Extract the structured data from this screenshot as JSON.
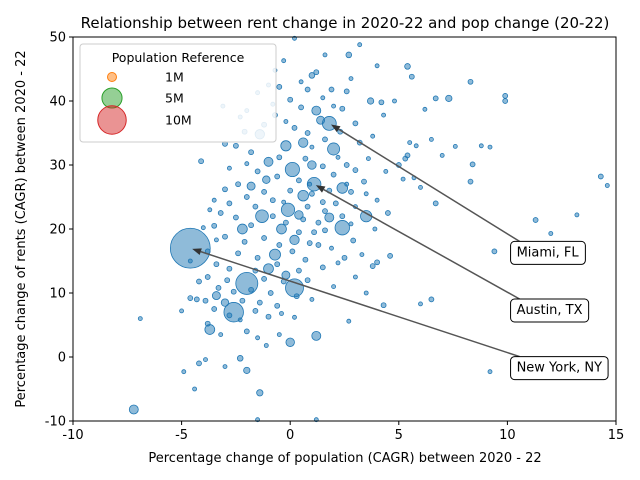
{
  "chart_data": {
    "type": "scatter",
    "title": "Relationship between rent change in 2020-22 and pop change (20-22)",
    "xlabel": "Percentage change of population (CAGR) between 2020 - 22",
    "ylabel": "Percentage change of rents (CAGR) between 2020 - 22",
    "xlim": [
      -10,
      15
    ],
    "ylim": [
      -10,
      50
    ],
    "xticks": [
      -10,
      -5,
      0,
      5,
      10,
      15
    ],
    "yticks": [
      -10,
      0,
      10,
      20,
      30,
      40,
      50
    ],
    "grid": false,
    "point_color": "#1f77b4",
    "legend": {
      "title": "Population Reference",
      "placement": "upper-left",
      "entries": [
        {
          "label": "1M",
          "population": 1000000,
          "color": "#ff7f0e"
        },
        {
          "label": "5M",
          "population": 5000000,
          "color": "#2ca02c"
        },
        {
          "label": "10M",
          "population": 10000000,
          "color": "#d62728"
        }
      ]
    },
    "annotations": [
      {
        "text": "Miami, FL",
        "text_x": 10.1,
        "text_y": 16.5,
        "point_x": 1.8,
        "point_y": 36.5
      },
      {
        "text": "Austin, TX",
        "text_x": 10.1,
        "text_y": 7.5,
        "point_x": 1.1,
        "point_y": 27.0
      },
      {
        "text": "New York, NY",
        "text_x": 10.1,
        "text_y": -1.5,
        "point_x": -4.6,
        "point_y": 17.0
      }
    ],
    "points": [
      {
        "x": -4.6,
        "y": 17.0,
        "pop": 19.6
      },
      {
        "x": -2.0,
        "y": 11.5,
        "pop": 6.0
      },
      {
        "x": -2.6,
        "y": 7.0,
        "pop": 4.7
      },
      {
        "x": 0.2,
        "y": 10.8,
        "pop": 4.0
      },
      {
        "x": 1.8,
        "y": 36.5,
        "pop": 2.4
      },
      {
        "x": 1.1,
        "y": 27.0,
        "pop": 2.3
      },
      {
        "x": 0.1,
        "y": 29.3,
        "pop": 2.5
      },
      {
        "x": 2.4,
        "y": 20.2,
        "pop": 2.6
      },
      {
        "x": -0.1,
        "y": 23.0,
        "pop": 2.2
      },
      {
        "x": -1.3,
        "y": 22.0,
        "pop": 2.0
      },
      {
        "x": 2.0,
        "y": 32.5,
        "pop": 1.8
      },
      {
        "x": 3.5,
        "y": 22.0,
        "pop": 1.6
      },
      {
        "x": -0.7,
        "y": 16.0,
        "pop": 1.5
      },
      {
        "x": 2.4,
        "y": 26.4,
        "pop": 1.4
      },
      {
        "x": -7.2,
        "y": -8.2,
        "pop": 1.0
      },
      {
        "x": -3.7,
        "y": 4.3,
        "pop": 1.2
      },
      {
        "x": 1.2,
        "y": 3.3,
        "pop": 1.0
      },
      {
        "x": 0.0,
        "y": 2.3,
        "pop": 0.9
      },
      {
        "x": -1.4,
        "y": 34.8,
        "pop": 1.1
      },
      {
        "x": -0.2,
        "y": 33.0,
        "pop": 1.3
      },
      {
        "x": -1.0,
        "y": 30.5,
        "pop": 1.0
      },
      {
        "x": 0.6,
        "y": 25.2,
        "pop": 1.4
      },
      {
        "x": -0.4,
        "y": 20.0,
        "pop": 1.2
      },
      {
        "x": -2.2,
        "y": 20.0,
        "pop": 1.2
      },
      {
        "x": 1.8,
        "y": 21.8,
        "pop": 1.0
      },
      {
        "x": 1.0,
        "y": 30.0,
        "pop": 0.9
      },
      {
        "x": 0.2,
        "y": 18.3,
        "pop": 1.1
      },
      {
        "x": -1.0,
        "y": 13.8,
        "pop": 1.2
      },
      {
        "x": 1.2,
        "y": 38.5,
        "pop": 1.0
      },
      {
        "x": 0.6,
        "y": 33.5,
        "pop": 1.1
      },
      {
        "x": 1.4,
        "y": 37.0,
        "pop": 0.8
      },
      {
        "x": -1.8,
        "y": 26.7,
        "pop": 0.8
      },
      {
        "x": -3.4,
        "y": 9.6,
        "pop": 0.8
      },
      {
        "x": -0.2,
        "y": 12.8,
        "pop": 0.8
      },
      {
        "x": 0.4,
        "y": 22.2,
        "pop": 0.9
      },
      {
        "x": -3.0,
        "y": 8.5,
        "pop": 0.7
      },
      {
        "x": -1.1,
        "y": 27.7,
        "pop": 0.7
      },
      {
        "x": 3.7,
        "y": 40.0,
        "pop": 0.5
      },
      {
        "x": 7.3,
        "y": 40.4,
        "pop": 0.5
      },
      {
        "x": 1.0,
        "y": 44.0,
        "pop": 0.4
      },
      {
        "x": 2.7,
        "y": 47.2,
        "pop": 0.4
      },
      {
        "x": 5.4,
        "y": 45.4,
        "pop": 0.4
      },
      {
        "x": 5.6,
        "y": 43.8,
        "pop": 0.3
      },
      {
        "x": -1.4,
        "y": -5.6,
        "pop": 0.5
      },
      {
        "x": -2.0,
        "y": -2.1,
        "pop": 0.5
      },
      {
        "x": -2.3,
        "y": -0.2,
        "pop": 0.4
      },
      {
        "x": -4.2,
        "y": -1.0,
        "pop": 0.3
      },
      {
        "x": -4.2,
        "y": 11.8,
        "pop": 0.3
      },
      {
        "x": -4.3,
        "y": 9.0,
        "pop": 0.3
      },
      {
        "x": -4.6,
        "y": 9.2,
        "pop": 0.3
      },
      {
        "x": 14.3,
        "y": 28.2,
        "pop": 0.3
      },
      {
        "x": 11.3,
        "y": 21.4,
        "pop": 0.3
      },
      {
        "x": 9.4,
        "y": 16.5,
        "pop": 0.3
      },
      {
        "x": 8.3,
        "y": 27.4,
        "pop": 0.3
      },
      {
        "x": 6.7,
        "y": 24.0,
        "pop": 0.3
      },
      {
        "x": 4.5,
        "y": 22.5,
        "pop": 0.3
      },
      {
        "x": 4.0,
        "y": 14.8,
        "pop": 0.3
      },
      {
        "x": 4.6,
        "y": 15.8,
        "pop": 0.3
      },
      {
        "x": 4.3,
        "y": 8.1,
        "pop": 0.3
      },
      {
        "x": 6.5,
        "y": 9.0,
        "pop": 0.3
      },
      {
        "x": 2.7,
        "y": 5.6,
        "pop": 0.2
      },
      {
        "x": 9.9,
        "y": 40.0,
        "pop": 0.3
      },
      {
        "x": 9.9,
        "y": 40.8,
        "pop": 0.3
      },
      {
        "x": 8.3,
        "y": 43.0,
        "pop": 0.3
      },
      {
        "x": 6.7,
        "y": 40.4,
        "pop": 0.3
      },
      {
        "x": 5.3,
        "y": 31.0,
        "pop": 0.3
      },
      {
        "x": 5.4,
        "y": 31.5,
        "pop": 0.3
      },
      {
        "x": 5.7,
        "y": 28.0,
        "pop": 0.2
      },
      {
        "x": 5.0,
        "y": 30.0,
        "pop": 0.3
      },
      {
        "x": 6.2,
        "y": 38.7,
        "pop": 0.2
      },
      {
        "x": 8.4,
        "y": 30.1,
        "pop": 0.3
      },
      {
        "x": 8.8,
        "y": 33.0,
        "pop": 0.2
      },
      {
        "x": 9.2,
        "y": 32.8,
        "pop": 0.2
      },
      {
        "x": 7.6,
        "y": 32.9,
        "pop": 0.2
      },
      {
        "x": 6.5,
        "y": 34.0,
        "pop": 0.2
      },
      {
        "x": 7.0,
        "y": 31.5,
        "pop": 0.2
      },
      {
        "x": 5.5,
        "y": 33.5,
        "pop": 0.2
      },
      {
        "x": 4.2,
        "y": 39.8,
        "pop": 0.3
      },
      {
        "x": 4.0,
        "y": 45.5,
        "pop": 0.2
      },
      {
        "x": 3.2,
        "y": 48.8,
        "pop": 0.2
      },
      {
        "x": 0.2,
        "y": 49.8,
        "pop": 0.2
      },
      {
        "x": 1.6,
        "y": 47.2,
        "pop": 0.2
      },
      {
        "x": -0.7,
        "y": 44.8,
        "pop": 0.2
      },
      {
        "x": -0.3,
        "y": 46.3,
        "pop": 0.2
      },
      {
        "x": -3.1,
        "y": 39.2,
        "pop": 0.2
      },
      {
        "x": -3.0,
        "y": 33.3,
        "pop": 0.3
      },
      {
        "x": -4.1,
        "y": 30.6,
        "pop": 0.3
      },
      {
        "x": -2.1,
        "y": 35.2,
        "pop": 0.3
      },
      {
        "x": -2.3,
        "y": 37.5,
        "pop": 0.2
      },
      {
        "x": 14.6,
        "y": 26.8,
        "pop": 0.2
      },
      {
        "x": 13.2,
        "y": 22.2,
        "pop": 0.2
      },
      {
        "x": 12.0,
        "y": 19.3,
        "pop": 0.2
      },
      {
        "x": 9.2,
        "y": -2.3,
        "pop": 0.2
      },
      {
        "x": 6.0,
        "y": 8.3,
        "pop": 0.2
      },
      {
        "x": 3.5,
        "y": 10.0,
        "pop": 0.2
      },
      {
        "x": 3.8,
        "y": 14.2,
        "pop": 0.3
      },
      {
        "x": 3.3,
        "y": 16.0,
        "pop": 0.2
      },
      {
        "x": 2.9,
        "y": 18.2,
        "pop": 0.3
      },
      {
        "x": 2.5,
        "y": 15.5,
        "pop": 0.3
      },
      {
        "x": 2.2,
        "y": 14.7,
        "pop": 0.2
      },
      {
        "x": 1.5,
        "y": 14.0,
        "pop": 0.3
      },
      {
        "x": 1.3,
        "y": 17.5,
        "pop": 0.3
      },
      {
        "x": 1.1,
        "y": 19.5,
        "pop": 0.3
      },
      {
        "x": 1.6,
        "y": 22.8,
        "pop": 0.3
      },
      {
        "x": 2.1,
        "y": 24.0,
        "pop": 0.3
      },
      {
        "x": 2.8,
        "y": 25.8,
        "pop": 0.3
      },
      {
        "x": 3.4,
        "y": 27.4,
        "pop": 0.3
      },
      {
        "x": 3.0,
        "y": 29.2,
        "pop": 0.3
      },
      {
        "x": 2.6,
        "y": 30.0,
        "pop": 0.3
      },
      {
        "x": 3.2,
        "y": 33.5,
        "pop": 0.3
      },
      {
        "x": 2.3,
        "y": 35.2,
        "pop": 0.3
      },
      {
        "x": 3.0,
        "y": 36.5,
        "pop": 0.3
      },
      {
        "x": 2.4,
        "y": 38.8,
        "pop": 0.3
      },
      {
        "x": 2.6,
        "y": 41.5,
        "pop": 0.3
      },
      {
        "x": 1.9,
        "y": 41.8,
        "pop": 0.3
      },
      {
        "x": 1.2,
        "y": 44.5,
        "pop": 0.3
      },
      {
        "x": 0.8,
        "y": 41.8,
        "pop": 0.3
      },
      {
        "x": 0.0,
        "y": 40.2,
        "pop": 0.3
      },
      {
        "x": -0.5,
        "y": 42.2,
        "pop": 0.3
      },
      {
        "x": 0.5,
        "y": 39.0,
        "pop": 0.3
      },
      {
        "x": -1.5,
        "y": 41.3,
        "pop": 0.2
      },
      {
        "x": -2.0,
        "y": 38.5,
        "pop": 0.2
      },
      {
        "x": -0.7,
        "y": 37.8,
        "pop": 0.3
      },
      {
        "x": -1.2,
        "y": 36.3,
        "pop": 0.3
      },
      {
        "x": 0.2,
        "y": 35.8,
        "pop": 0.3
      },
      {
        "x": 0.8,
        "y": 35.0,
        "pop": 0.3
      },
      {
        "x": 1.6,
        "y": 34.0,
        "pop": 0.3
      },
      {
        "x": -2.5,
        "y": 33.0,
        "pop": 0.3
      },
      {
        "x": -1.8,
        "y": 32.0,
        "pop": 0.3
      },
      {
        "x": -0.5,
        "y": 31.2,
        "pop": 0.3
      },
      {
        "x": 0.7,
        "y": 31.0,
        "pop": 0.3
      },
      {
        "x": 1.5,
        "y": 29.8,
        "pop": 0.3
      },
      {
        "x": 2.0,
        "y": 28.5,
        "pop": 0.3
      },
      {
        "x": -1.5,
        "y": 29.0,
        "pop": 0.3
      },
      {
        "x": -0.6,
        "y": 28.2,
        "pop": 0.3
      },
      {
        "x": 0.4,
        "y": 27.6,
        "pop": 0.3
      },
      {
        "x": -2.4,
        "y": 27.0,
        "pop": 0.3
      },
      {
        "x": -3.0,
        "y": 26.2,
        "pop": 0.3
      },
      {
        "x": -2.0,
        "y": 25.0,
        "pop": 0.3
      },
      {
        "x": -1.2,
        "y": 25.8,
        "pop": 0.3
      },
      {
        "x": 0.0,
        "y": 26.0,
        "pop": 0.3
      },
      {
        "x": 1.0,
        "y": 25.5,
        "pop": 0.3
      },
      {
        "x": 1.8,
        "y": 26.0,
        "pop": 0.3
      },
      {
        "x": -2.8,
        "y": 24.0,
        "pop": 0.3
      },
      {
        "x": -1.6,
        "y": 23.5,
        "pop": 0.3
      },
      {
        "x": -0.8,
        "y": 24.5,
        "pop": 0.3
      },
      {
        "x": 0.8,
        "y": 23.5,
        "pop": 0.3
      },
      {
        "x": 1.5,
        "y": 24.2,
        "pop": 0.3
      },
      {
        "x": -3.2,
        "y": 22.5,
        "pop": 0.3
      },
      {
        "x": -2.5,
        "y": 21.8,
        "pop": 0.3
      },
      {
        "x": -0.8,
        "y": 22.0,
        "pop": 0.3
      },
      {
        "x": 0.6,
        "y": 21.5,
        "pop": 0.3
      },
      {
        "x": 1.3,
        "y": 21.0,
        "pop": 0.3
      },
      {
        "x": 2.4,
        "y": 22.0,
        "pop": 0.3
      },
      {
        "x": -3.5,
        "y": 20.5,
        "pop": 0.3
      },
      {
        "x": -1.8,
        "y": 20.6,
        "pop": 0.3
      },
      {
        "x": -0.2,
        "y": 21.0,
        "pop": 0.3
      },
      {
        "x": 0.4,
        "y": 19.5,
        "pop": 0.3
      },
      {
        "x": 1.6,
        "y": 19.8,
        "pop": 0.3
      },
      {
        "x": -3.0,
        "y": 18.8,
        "pop": 0.3
      },
      {
        "x": -2.1,
        "y": 18.0,
        "pop": 0.3
      },
      {
        "x": -1.2,
        "y": 18.6,
        "pop": 0.3
      },
      {
        "x": -0.5,
        "y": 17.5,
        "pop": 0.3
      },
      {
        "x": 0.9,
        "y": 17.8,
        "pop": 0.3
      },
      {
        "x": -3.8,
        "y": 16.5,
        "pop": 0.3
      },
      {
        "x": -2.4,
        "y": 16.2,
        "pop": 0.3
      },
      {
        "x": -1.5,
        "y": 15.5,
        "pop": 0.3
      },
      {
        "x": 0.1,
        "y": 16.5,
        "pop": 0.3
      },
      {
        "x": 0.7,
        "y": 15.2,
        "pop": 0.3
      },
      {
        "x": -3.4,
        "y": 14.5,
        "pop": 0.3
      },
      {
        "x": -2.8,
        "y": 13.8,
        "pop": 0.3
      },
      {
        "x": -1.6,
        "y": 13.5,
        "pop": 0.3
      },
      {
        "x": -0.6,
        "y": 14.5,
        "pop": 0.3
      },
      {
        "x": 0.4,
        "y": 13.5,
        "pop": 0.3
      },
      {
        "x": -3.8,
        "y": 12.5,
        "pop": 0.3
      },
      {
        "x": -2.9,
        "y": 12.0,
        "pop": 0.3
      },
      {
        "x": -1.2,
        "y": 12.2,
        "pop": 0.3
      },
      {
        "x": -0.3,
        "y": 11.8,
        "pop": 0.3
      },
      {
        "x": 0.8,
        "y": 12.0,
        "pop": 0.3
      },
      {
        "x": -3.3,
        "y": 10.8,
        "pop": 0.3
      },
      {
        "x": -2.6,
        "y": 10.2,
        "pop": 0.3
      },
      {
        "x": -1.8,
        "y": 10.5,
        "pop": 0.3
      },
      {
        "x": -0.9,
        "y": 10.0,
        "pop": 0.3
      },
      {
        "x": 0.3,
        "y": 9.5,
        "pop": 0.3
      },
      {
        "x": -3.9,
        "y": 8.8,
        "pop": 0.3
      },
      {
        "x": -2.2,
        "y": 8.8,
        "pop": 0.3
      },
      {
        "x": -1.4,
        "y": 8.5,
        "pop": 0.3
      },
      {
        "x": -0.6,
        "y": 8.0,
        "pop": 0.3
      },
      {
        "x": -3.5,
        "y": 7.5,
        "pop": 0.3
      },
      {
        "x": -2.8,
        "y": 6.5,
        "pop": 0.3
      },
      {
        "x": -1.6,
        "y": 7.2,
        "pop": 0.3
      },
      {
        "x": -1.0,
        "y": 6.3,
        "pop": 0.3
      },
      {
        "x": 0.2,
        "y": 6.2,
        "pop": 0.2
      },
      {
        "x": -3.8,
        "y": 5.2,
        "pop": 0.3
      },
      {
        "x": -2.0,
        "y": 4.0,
        "pop": 0.3
      },
      {
        "x": -0.5,
        "y": 3.5,
        "pop": 0.2
      },
      {
        "x": -1.1,
        "y": 1.8,
        "pop": 0.2
      },
      {
        "x": -3.9,
        "y": -0.4,
        "pop": 0.2
      },
      {
        "x": -4.4,
        "y": -5.0,
        "pop": 0.2
      },
      {
        "x": -4.9,
        "y": -2.3,
        "pop": 0.2
      },
      {
        "x": -5.0,
        "y": 7.2,
        "pop": 0.2
      },
      {
        "x": -6.9,
        "y": 6.0,
        "pop": 0.2
      },
      {
        "x": -3.0,
        "y": -1.5,
        "pop": 0.2
      },
      {
        "x": -1.5,
        "y": -9.8,
        "pop": 0.2
      },
      {
        "x": 1.2,
        "y": -9.8,
        "pop": 0.2
      },
      {
        "x": -4.6,
        "y": 15.0,
        "pop": 0.2
      },
      {
        "x": -3.4,
        "y": 18.3,
        "pop": 0.2
      },
      {
        "x": -4.0,
        "y": 20.2,
        "pop": 0.2
      },
      {
        "x": -2.0,
        "y": 30.2,
        "pop": 0.2
      },
      {
        "x": -0.8,
        "y": 39.5,
        "pop": 0.2
      },
      {
        "x": 2.0,
        "y": 39.2,
        "pop": 0.2
      },
      {
        "x": 3.8,
        "y": 34.5,
        "pop": 0.2
      },
      {
        "x": 4.3,
        "y": 37.8,
        "pop": 0.2
      },
      {
        "x": 3.6,
        "y": 31.0,
        "pop": 0.2
      },
      {
        "x": 4.4,
        "y": 29.0,
        "pop": 0.2
      },
      {
        "x": 4.0,
        "y": 24.5,
        "pop": 0.2
      },
      {
        "x": 3.9,
        "y": 20.0,
        "pop": 0.2
      },
      {
        "x": 3.0,
        "y": 23.5,
        "pop": 0.2
      },
      {
        "x": 5.2,
        "y": 27.8,
        "pop": 0.2
      },
      {
        "x": 6.0,
        "y": 26.5,
        "pop": 0.2
      },
      {
        "x": 5.8,
        "y": 33.0,
        "pop": 0.2
      },
      {
        "x": 4.8,
        "y": 40.0,
        "pop": 0.2
      },
      {
        "x": 2.8,
        "y": 43.5,
        "pop": 0.2
      },
      {
        "x": 0.5,
        "y": 43.0,
        "pop": 0.2
      },
      {
        "x": -1.0,
        "y": 42.5,
        "pop": 0.2
      },
      {
        "x": 1.5,
        "y": 40.5,
        "pop": 0.2
      },
      {
        "x": -0.2,
        "y": 36.8,
        "pop": 0.2
      },
      {
        "x": 1.0,
        "y": 32.8,
        "pop": 0.2
      },
      {
        "x": 2.2,
        "y": 31.2,
        "pop": 0.2
      },
      {
        "x": -2.8,
        "y": 29.5,
        "pop": 0.2
      },
      {
        "x": -3.5,
        "y": 24.5,
        "pop": 0.2
      },
      {
        "x": -3.7,
        "y": 23.0,
        "pop": 0.2
      },
      {
        "x": -0.3,
        "y": 24.2,
        "pop": 0.2
      },
      {
        "x": 0.9,
        "y": 27.0,
        "pop": 0.2
      },
      {
        "x": 2.6,
        "y": 27.0,
        "pop": 0.2
      },
      {
        "x": 3.5,
        "y": 25.5,
        "pop": 0.2
      },
      {
        "x": 2.8,
        "y": 20.8,
        "pop": 0.2
      },
      {
        "x": 1.9,
        "y": 17.0,
        "pop": 0.2
      },
      {
        "x": 3.0,
        "y": 12.5,
        "pop": 0.2
      },
      {
        "x": 2.0,
        "y": 11.0,
        "pop": 0.2
      },
      {
        "x": 1.0,
        "y": 9.0,
        "pop": 0.2
      },
      {
        "x": -0.4,
        "y": 6.8,
        "pop": 0.2
      },
      {
        "x": -2.3,
        "y": 5.8,
        "pop": 0.2
      },
      {
        "x": -1.5,
        "y": 3.0,
        "pop": 0.2
      },
      {
        "x": -3.2,
        "y": 3.5,
        "pop": 0.2
      }
    ]
  }
}
